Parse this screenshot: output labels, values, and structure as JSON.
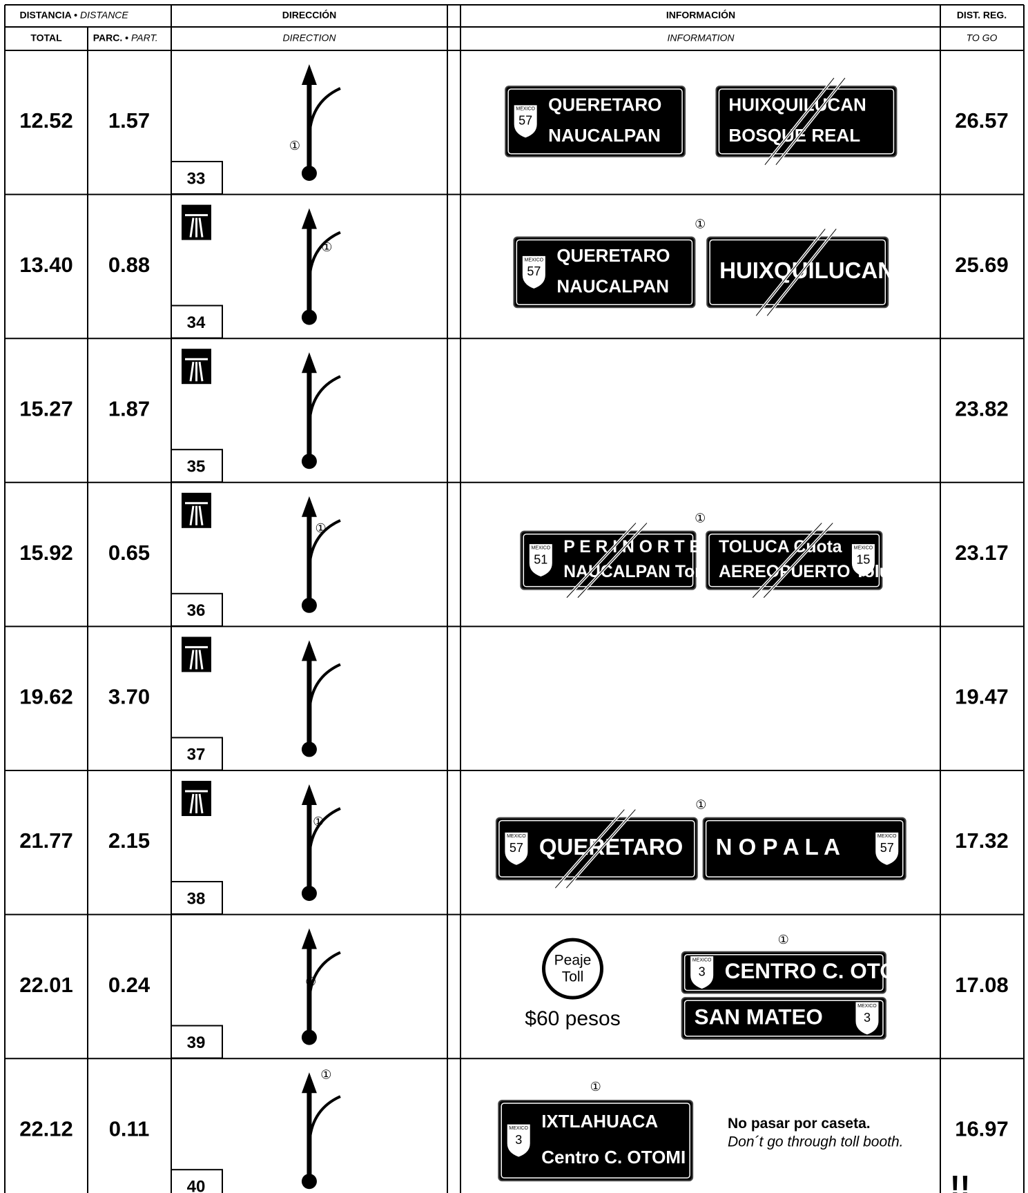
{
  "header": {
    "distance": "DISTANCIA •",
    "distance_en": "DISTANCE",
    "total": "TOTAL",
    "partial": "PARC. •",
    "partial_en": "PART.",
    "direction": "DIRECCIÓN",
    "direction_en": "DIRECTION",
    "information": "INFORMACIÓN",
    "information_en": "INFORMATION",
    "dist_reg": "DIST. REG.",
    "to_go": "TO GO"
  },
  "rows": [
    {
      "total": "12.52",
      "partial": "1.57",
      "step": "33",
      "callout": "①",
      "to_go": "26.57",
      "info": {
        "signs": [
          {
            "shield": {
              "label": "MEXICO",
              "number": "57"
            },
            "lines": [
              "QUERETARO",
              "NAUCALPAN"
            ],
            "struck": false
          },
          {
            "lines": [
              "HUIXQUILUCAN",
              "BOSQUE REAL"
            ],
            "struck": true
          }
        ]
      }
    },
    {
      "total": "13.40",
      "partial": "0.88",
      "step": "34",
      "callout": "①",
      "to_go": "25.69",
      "info": {
        "signs": [
          {
            "shield": {
              "label": "MEXICO",
              "number": "57"
            },
            "lines": [
              "QUERETARO",
              "NAUCALPAN"
            ],
            "struck": false
          },
          {
            "lines": [
              "HUIXQUILUCAN"
            ],
            "struck": true
          }
        ]
      }
    },
    {
      "total": "15.27",
      "partial": "1.87",
      "step": "35",
      "to_go": "23.82"
    },
    {
      "total": "15.92",
      "partial": "0.65",
      "step": "36",
      "callout": "①",
      "to_go": "23.17",
      "info": {
        "signs": [
          {
            "shield": {
              "label": "MEXICO",
              "number": "51"
            },
            "lines": [
              "P E R I N O R T E",
              "NAUCALPAN Toreo"
            ],
            "struck": true
          },
          {
            "shield": {
              "label": "MEXICO",
              "number": "15"
            },
            "lines": [
              "TOLUCA Cuota",
              "AEREOPUERTO Toluca"
            ],
            "struck": true
          }
        ]
      }
    },
    {
      "total": "19.62",
      "partial": "3.70",
      "step": "37",
      "to_go": "19.47"
    },
    {
      "total": "21.77",
      "partial": "2.15",
      "step": "38",
      "callout": "①",
      "to_go": "17.32",
      "info": {
        "signs": [
          {
            "shield": {
              "label": "MEXICO",
              "number": "57"
            },
            "lines": [
              "QUERETARO"
            ],
            "struck": true
          },
          {
            "shield": {
              "label": "MEXICO",
              "number": "57"
            },
            "lines": [
              "N O P A L A"
            ],
            "struck": false
          }
        ]
      }
    },
    {
      "total": "22.01",
      "partial": "0.24",
      "step": "39",
      "callout": "①",
      "to_go": "17.08",
      "info": {
        "toll": {
          "line1": "Peaje",
          "line2": "Toll",
          "price": "$60 pesos"
        },
        "signs": [
          {
            "shield": {
              "label": "MEXICO",
              "number": "3"
            },
            "lines": [
              "CENTRO C. OTOMI"
            ],
            "struck": false
          },
          {
            "shield": {
              "label": "MEXICO",
              "number": "3"
            },
            "lines": [
              "SAN MATEO"
            ],
            "struck": false
          }
        ]
      }
    },
    {
      "total": "22.12",
      "partial": "0.11",
      "step": "40",
      "callout": "①",
      "to_go": "16.97",
      "warning": "!!",
      "info": {
        "note": {
          "es": "No pasar por caseta.",
          "en": "Don´t go through toll booth."
        },
        "signs": [
          {
            "shield": {
              "label": "MEXICO",
              "number": "3"
            },
            "lines": [
              "IXTLAHUACA",
              "Centro C. OTOMI"
            ],
            "struck": false
          }
        ]
      }
    }
  ]
}
